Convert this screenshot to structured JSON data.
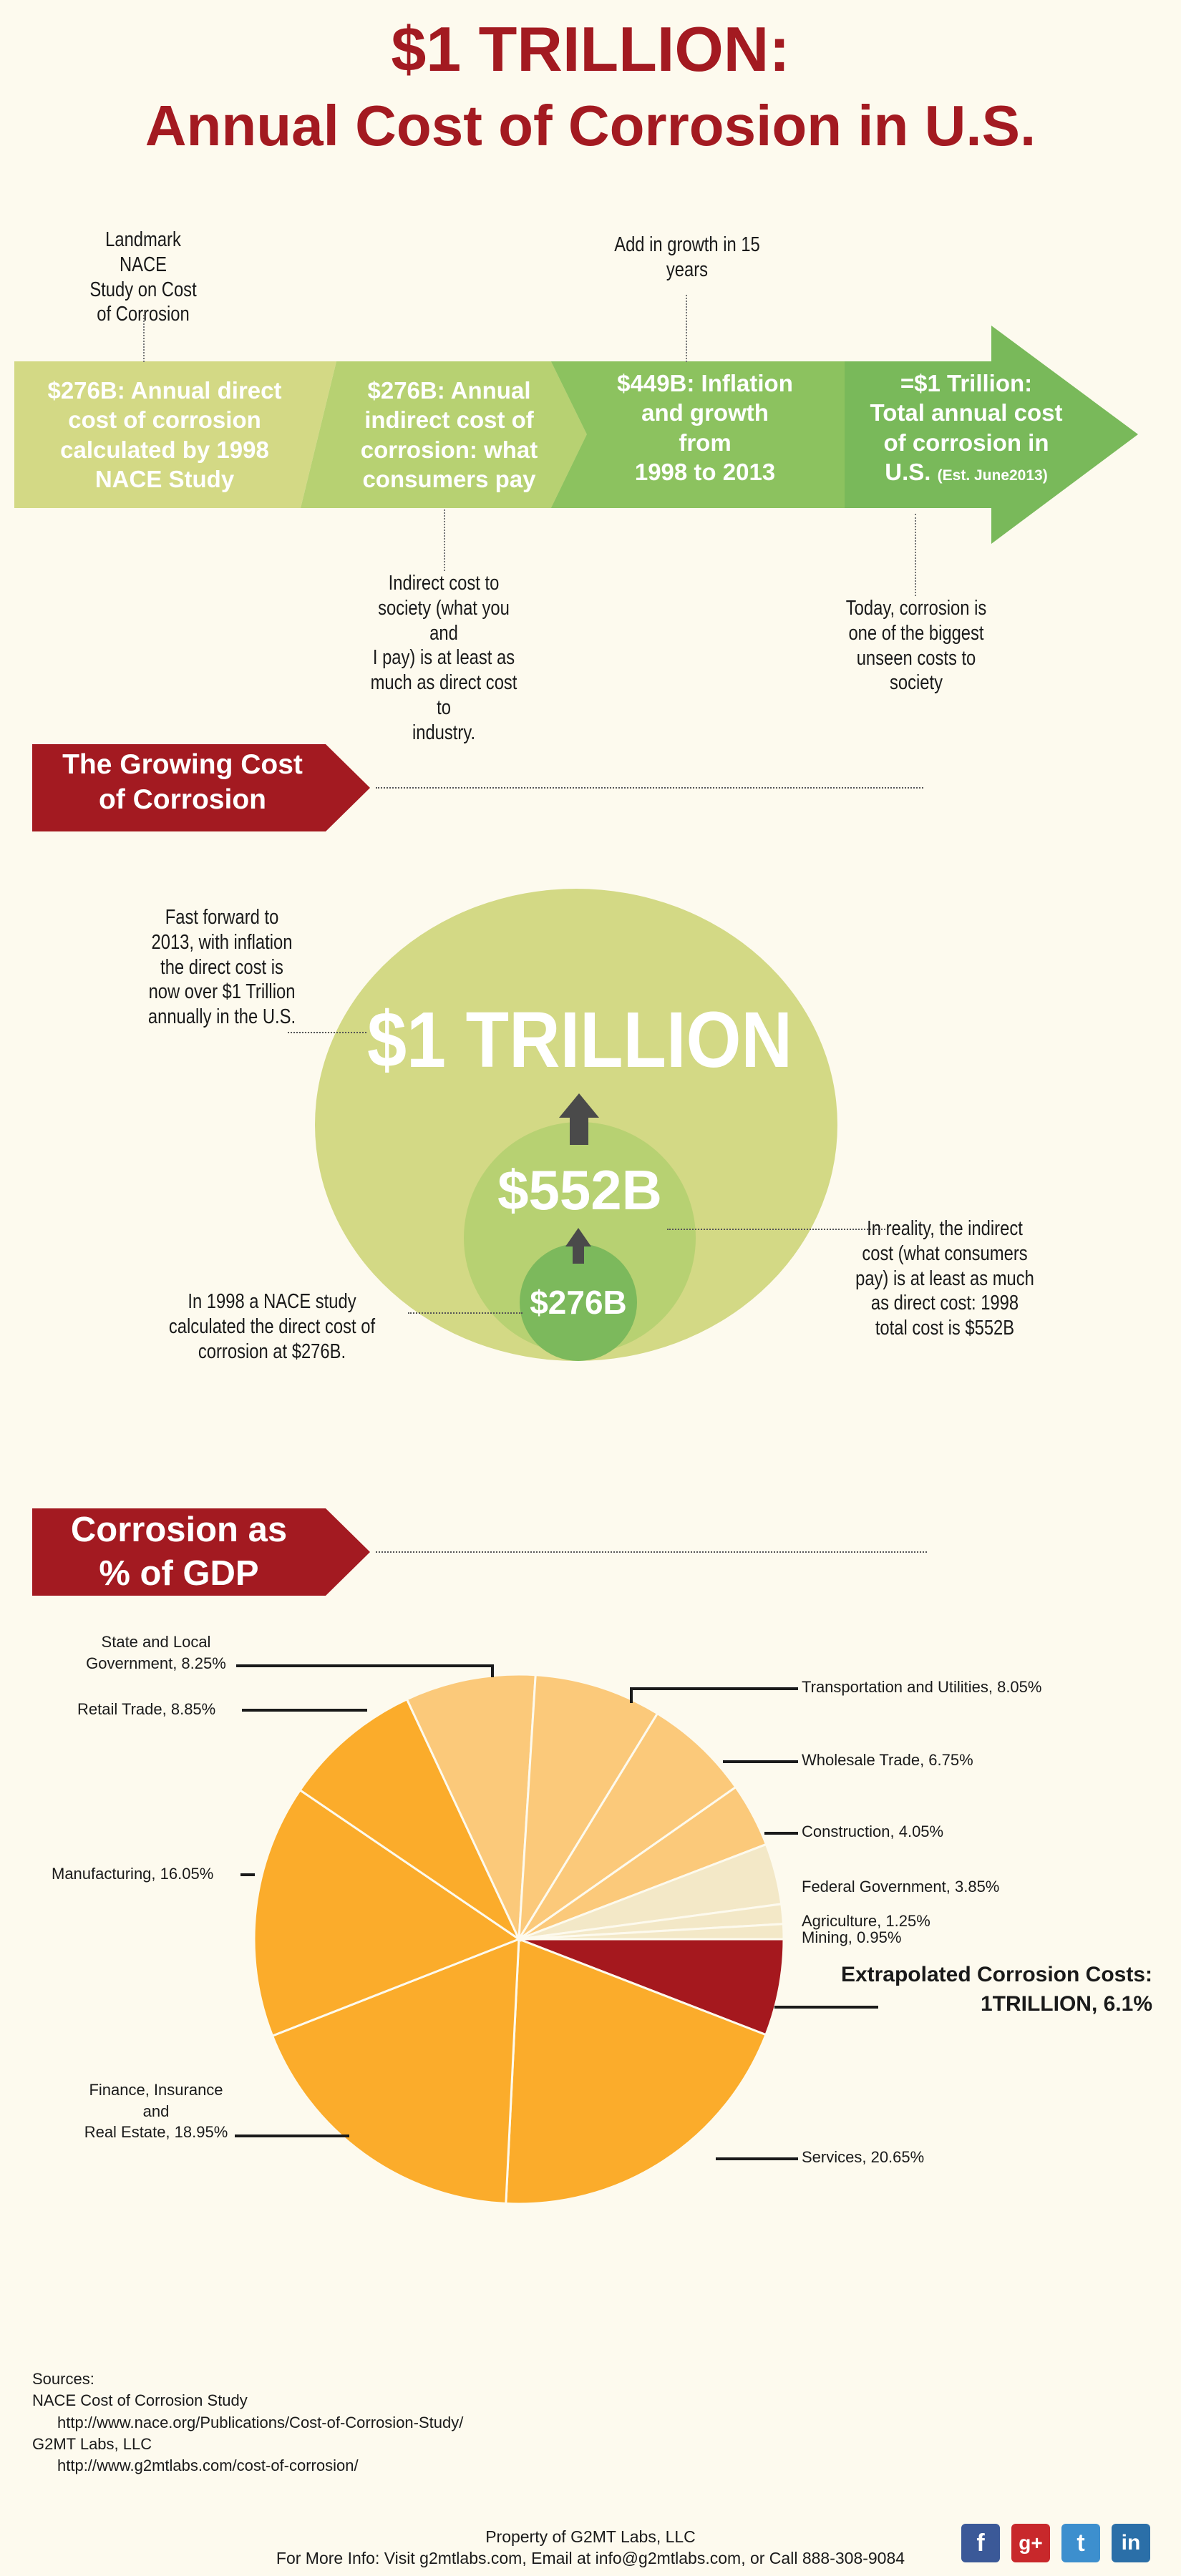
{
  "title": {
    "line1": "$1 TRILLION:",
    "line2": "Annual Cost of Corrosion in U.S."
  },
  "timeline": {
    "steps": [
      {
        "line1": "$276B: Annual direct",
        "line2": "cost of corrosion",
        "line3": "calculated by 1998",
        "line4": "NACE Study",
        "color": "#d3d985"
      },
      {
        "line1": "$276B: Annual",
        "line2": "indirect cost of",
        "line3": "corrosion: what",
        "line4": "consumers pay",
        "color": "#b7d172"
      },
      {
        "line1": "$449B: Inflation",
        "line2": "and growth",
        "line3": "from",
        "line4": "1998 to 2013",
        "color": "#8cc25f"
      },
      {
        "line1": "=$1 Trillion:",
        "line2": "Total annual cost",
        "line3": "of corrosion in",
        "line4": "U.S.",
        "small": "(Est. June2013)",
        "color": "#79b95a"
      }
    ],
    "notes": {
      "nace": [
        "Landmark NACE",
        "Study on Cost",
        "of Corrosion"
      ],
      "growth": [
        "Add in growth in 15",
        "years"
      ],
      "indirect": [
        "Indirect cost to",
        "society (what you and",
        "I pay) is at least as",
        "much as direct cost to",
        "industry."
      ],
      "today": [
        "Today, corrosion is",
        "one of the biggest",
        "unseen costs to",
        "society"
      ]
    }
  },
  "section1": {
    "line1": "The Growing Cost",
    "line2": "of Corrosion"
  },
  "bubbles": {
    "big": "$1 TRILLION",
    "mid": "$552B",
    "small": "$276B",
    "note_fast": [
      "Fast forward to",
      "2013, with inflation",
      "the direct cost is",
      "now over $1 Trillion",
      "annually in the U.S."
    ],
    "note_reality": [
      "In reality, the indirect",
      "cost (what consumers",
      "pay) is at least as much",
      "as direct cost: 1998",
      "total cost is $552B"
    ],
    "note_1998": [
      "In 1998 a NACE study",
      "calculated the direct cost of",
      "corrosion at $276B."
    ]
  },
  "section2": {
    "line1": "Corrosion as",
    "line2": "% of GDP"
  },
  "chart_data": {
    "type": "pie",
    "title": "",
    "unit": "%",
    "slices": [
      {
        "label": "Extrapolated Corrosion Costs: 1TRILLION",
        "value": 6.1,
        "color": "#a5181e"
      },
      {
        "label": "Services",
        "value": 20.65,
        "color": "#fbac2b"
      },
      {
        "label": "Finance, Insurance and Real Estate",
        "value": 18.95,
        "color": "#fbac2b"
      },
      {
        "label": "Manufacturing",
        "value": 16.05,
        "color": "#fbac2b"
      },
      {
        "label": "Retail Trade",
        "value": 8.85,
        "color": "#fbac2b"
      },
      {
        "label": "State and Local Government",
        "value": 8.25,
        "color": "#fbc97a"
      },
      {
        "label": "Transportation and Utilities",
        "value": 8.05,
        "color": "#fbc97a"
      },
      {
        "label": "Wholesale Trade",
        "value": 6.75,
        "color": "#fbc97a"
      },
      {
        "label": "Construction",
        "value": 4.05,
        "color": "#fbc97a"
      },
      {
        "label": "Federal Government",
        "value": 3.85,
        "color": "#f3e8c7"
      },
      {
        "label": "Agriculture",
        "value": 1.25,
        "color": "#f3e8c7"
      },
      {
        "label": "Mining",
        "value": 0.95,
        "color": "#f3e8c7"
      }
    ],
    "labels": {
      "state_local": [
        "State and Local",
        "Government, 8.25%"
      ],
      "retail": "Retail Trade, 8.85%",
      "manufacturing": "Manufacturing, 16.05%",
      "finance": [
        "Finance, Insurance",
        "and",
        "Real Estate, 18.95%"
      ],
      "transport": "Transportation and Utilities, 8.05%",
      "wholesale": "Wholesale Trade, 6.75%",
      "construction": "Construction, 4.05%",
      "federal": "Federal Government, 3.85%",
      "agriculture": "Agriculture, 1.25%",
      "mining": "Mining, 0.95%",
      "services": "Services, 20.65%",
      "extrapolated": [
        "Extrapolated Corrosion Costs:",
        "1TRILLION, 6.1%"
      ]
    }
  },
  "sources": {
    "heading": "Sources:",
    "s1": "NACE Cost of Corrosion Study",
    "u1": "http://www.nace.org/Publications/Cost-of-Corrosion-Study/",
    "s2": "G2MT Labs, LLC",
    "u2": "http://www.g2mtlabs.com/cost-of-corrosion/"
  },
  "footer": {
    "line1": "Property of G2MT Labs, LLC",
    "line2": "For More Info: Visit g2mtlabs.com, Email at info@g2mtlabs.com, or Call 888-308-9084",
    "icons": [
      "f",
      "g+",
      "t",
      "in"
    ],
    "icon_names": [
      "facebook-icon",
      "google-plus-icon",
      "twitter-icon",
      "linkedin-icon"
    ]
  }
}
